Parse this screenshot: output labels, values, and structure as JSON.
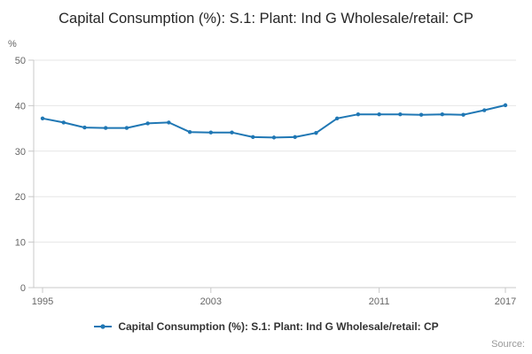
{
  "title": "Capital Consumption (%): S.1: Plant: Ind G Wholesale/retail: CP",
  "source_label": "Source:",
  "legend": {
    "label": "Capital Consumption (%): S.1: Plant: Ind G Wholesale/retail: CP",
    "color": "#1f77b4"
  },
  "chart_data": {
    "type": "line",
    "title": "Capital Consumption (%): S.1: Plant: Ind G Wholesale/retail: CP",
    "xlabel": "",
    "ylabel": "%",
    "ylim": [
      0,
      50
    ],
    "y_ticks": [
      0,
      10,
      20,
      30,
      40,
      50
    ],
    "x_ticks": [
      1995,
      2003,
      2011,
      2017
    ],
    "grid": true,
    "legend_position": "bottom",
    "color": "#1f77b4",
    "x": [
      1995,
      1996,
      1997,
      1998,
      1999,
      2000,
      2001,
      2002,
      2003,
      2004,
      2005,
      2006,
      2007,
      2008,
      2009,
      2010,
      2011,
      2012,
      2013,
      2014,
      2015,
      2016,
      2017
    ],
    "values": [
      37.2,
      36.3,
      35.2,
      35.1,
      35.1,
      36.1,
      36.3,
      34.2,
      34.1,
      34.1,
      33.1,
      33.0,
      33.1,
      34.0,
      37.2,
      38.1,
      38.1,
      38.1,
      38.0,
      38.1,
      38.0,
      39.0,
      40.1
    ]
  }
}
